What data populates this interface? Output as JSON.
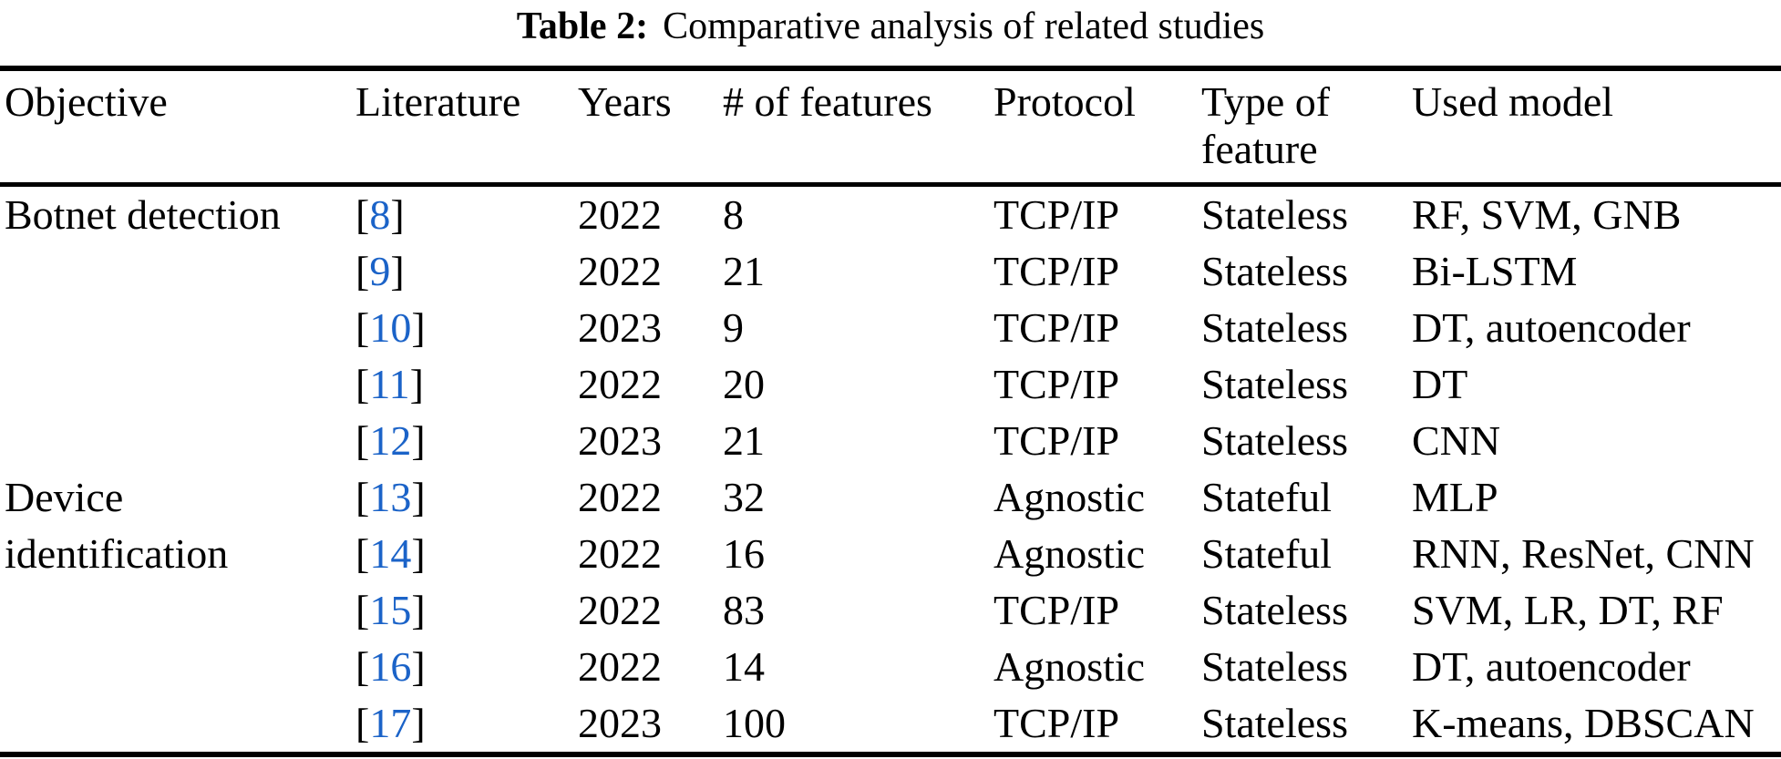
{
  "page": {
    "background": "#ffffff",
    "text_color": "#000000",
    "link_color": "#1b63c8"
  },
  "caption": {
    "label": "Table 2:",
    "text": "Comparative analysis of related studies"
  },
  "table": {
    "bracket_open": "[",
    "bracket_close": "]",
    "columns": [
      "Objective",
      "Literature",
      "Years",
      "# of features",
      "Protocol",
      "Type of feature",
      "Used model"
    ],
    "groups": [
      {
        "objective": "Botnet detection",
        "rows": [
          {
            "ref": "8",
            "year": "2022",
            "features": "8",
            "protocol": "TCP/IP",
            "feature_type": "Stateless",
            "model": "RF, SVM, GNB"
          },
          {
            "ref": "9",
            "year": "2022",
            "features": "21",
            "protocol": "TCP/IP",
            "feature_type": "Stateless",
            "model": "Bi-LSTM"
          },
          {
            "ref": "10",
            "year": "2023",
            "features": "9",
            "protocol": "TCP/IP",
            "feature_type": "Stateless",
            "model": "DT, autoencoder"
          },
          {
            "ref": "11",
            "year": "2022",
            "features": "20",
            "protocol": "TCP/IP",
            "feature_type": "Stateless",
            "model": "DT"
          },
          {
            "ref": "12",
            "year": "2023",
            "features": "21",
            "protocol": "TCP/IP",
            "feature_type": "Stateless",
            "model": "CNN"
          }
        ]
      },
      {
        "objective": "Device identification",
        "rows": [
          {
            "ref": "13",
            "year": "2022",
            "features": "32",
            "protocol": "Agnostic",
            "feature_type": "Stateful",
            "model": "MLP"
          },
          {
            "ref": "14",
            "year": "2022",
            "features": "16",
            "protocol": "Agnostic",
            "feature_type": "Stateful",
            "model": "RNN, ResNet, CNN"
          },
          {
            "ref": "15",
            "year": "2022",
            "features": "83",
            "protocol": "TCP/IP",
            "feature_type": "Stateless",
            "model": "SVM, LR, DT, RF"
          },
          {
            "ref": "16",
            "year": "2022",
            "features": "14",
            "protocol": "Agnostic",
            "feature_type": "Stateless",
            "model": "DT, autoencoder"
          },
          {
            "ref": "17",
            "year": "2023",
            "features": "100",
            "protocol": "TCP/IP",
            "feature_type": "Stateless",
            "model": "K-means, DBSCAN"
          }
        ]
      }
    ]
  }
}
